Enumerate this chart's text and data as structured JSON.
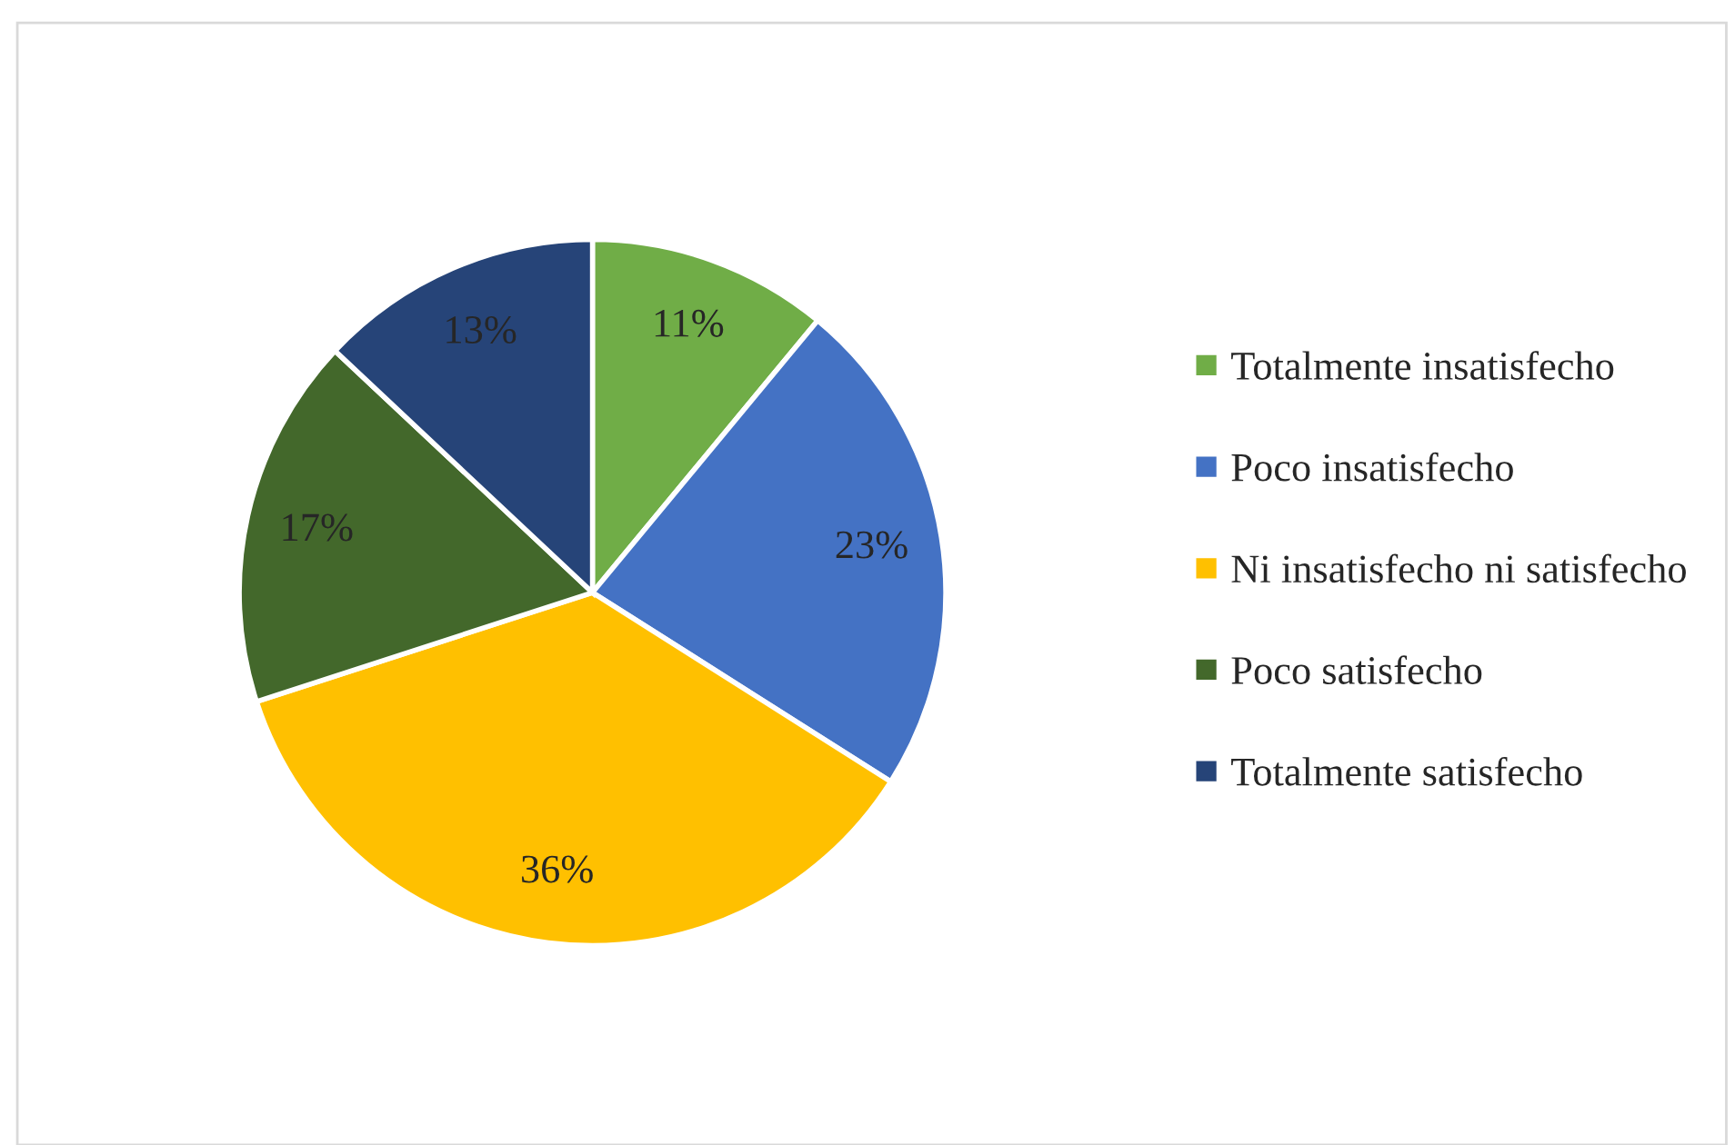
{
  "chart_data": {
    "type": "pie",
    "categories": [
      "Totalmente insatisfecho",
      "Poco insatisfecho",
      "Ni insatisfecho ni satisfecho",
      "Poco satisfecho",
      "Totalmente satisfecho"
    ],
    "values": [
      11,
      23,
      36,
      17,
      13
    ],
    "colors": [
      "#70ad47",
      "#4472c4",
      "#ffc000",
      "#43682b",
      "#264478"
    ],
    "value_labels": [
      "11%",
      "23%",
      "36%",
      "17%",
      "13%"
    ],
    "legend": "right"
  }
}
